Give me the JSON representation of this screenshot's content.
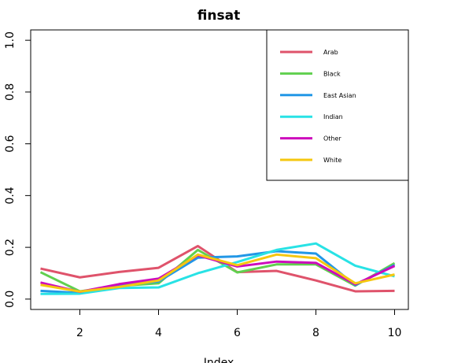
{
  "chart_data": {
    "type": "line",
    "title": "finsat",
    "xlabel": "Index",
    "ylabel": "",
    "xlim": [
      0.75,
      10.35
    ],
    "ylim": [
      -0.04,
      1.04
    ],
    "x_ticks": [
      2,
      4,
      6,
      8,
      10
    ],
    "y_ticks": [
      0.0,
      0.2,
      0.4,
      0.6,
      0.8,
      1.0
    ],
    "x_tick_labels": [
      "2",
      "4",
      "6",
      "8",
      "10"
    ],
    "y_tick_labels": [
      "0.0",
      "0.2",
      "0.4",
      "0.6",
      "0.8",
      "1.0"
    ],
    "grid": false,
    "legend_position": "top-right",
    "x": [
      1,
      2,
      3,
      4,
      5,
      6,
      7,
      8,
      9,
      10
    ],
    "series": [
      {
        "name": "Arab",
        "color": "#DF536B",
        "values": [
          0.118,
          0.084,
          0.105,
          0.121,
          0.205,
          0.104,
          0.109,
          0.072,
          0.03,
          0.032
        ]
      },
      {
        "name": "Black",
        "color": "#61D04F",
        "values": [
          0.104,
          0.03,
          0.051,
          0.061,
          0.19,
          0.103,
          0.134,
          0.134,
          0.052,
          0.139
        ]
      },
      {
        "name": "East Asian",
        "color": "#2297E6",
        "values": [
          0.032,
          0.024,
          0.054,
          0.068,
          0.16,
          0.165,
          0.185,
          0.176,
          0.054,
          0.132
        ]
      },
      {
        "name": "Indian",
        "color": "#28E2E5",
        "values": [
          0.02,
          0.021,
          0.043,
          0.045,
          0.1,
          0.143,
          0.19,
          0.215,
          0.129,
          0.088
        ]
      },
      {
        "name": "Other",
        "color": "#CD0BBC",
        "values": [
          0.064,
          0.028,
          0.058,
          0.079,
          0.169,
          0.126,
          0.145,
          0.14,
          0.057,
          0.128
        ]
      },
      {
        "name": "White",
        "color": "#F5C710",
        "values": [
          0.055,
          0.029,
          0.047,
          0.072,
          0.172,
          0.131,
          0.172,
          0.158,
          0.061,
          0.095
        ]
      }
    ]
  }
}
